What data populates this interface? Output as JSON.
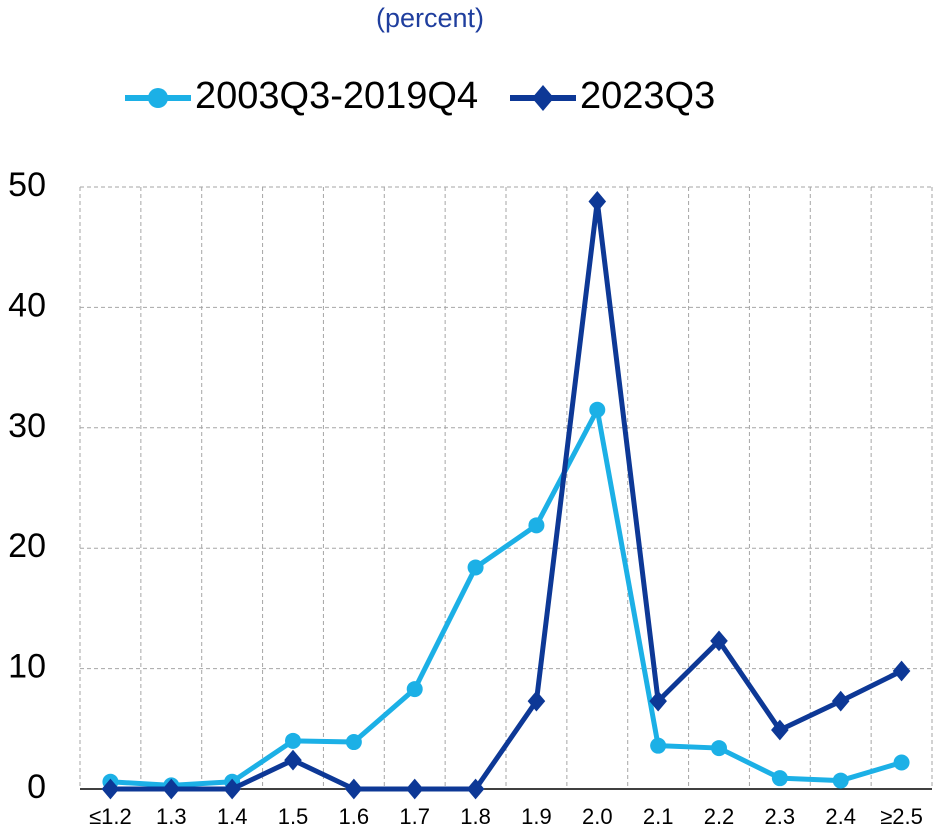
{
  "chart_data": {
    "type": "line",
    "title": "(percent)",
    "categories": [
      "≤1.2",
      "1.3",
      "1.4",
      "1.5",
      "1.6",
      "1.7",
      "1.8",
      "1.9",
      "2.0",
      "2.1",
      "2.2",
      "2.3",
      "2.4",
      "≥2.5"
    ],
    "series": [
      {
        "name": "2003Q3-2019Q4",
        "color": "#1cb0e6",
        "marker": "circle",
        "values": [
          0.6,
          0.3,
          0.6,
          4.0,
          3.9,
          8.3,
          18.4,
          21.9,
          31.5,
          3.6,
          3.4,
          0.9,
          0.7,
          2.2
        ]
      },
      {
        "name": "2023Q3",
        "color": "#0d3896",
        "marker": "diamond",
        "values": [
          0,
          0,
          0,
          2.4,
          0,
          0,
          0,
          7.3,
          48.8,
          7.3,
          12.3,
          4.9,
          7.3,
          9.8
        ]
      }
    ],
    "ylim": [
      0,
      50
    ],
    "yticks": [
      0,
      10,
      20,
      30,
      40,
      50
    ],
    "grid": true
  }
}
